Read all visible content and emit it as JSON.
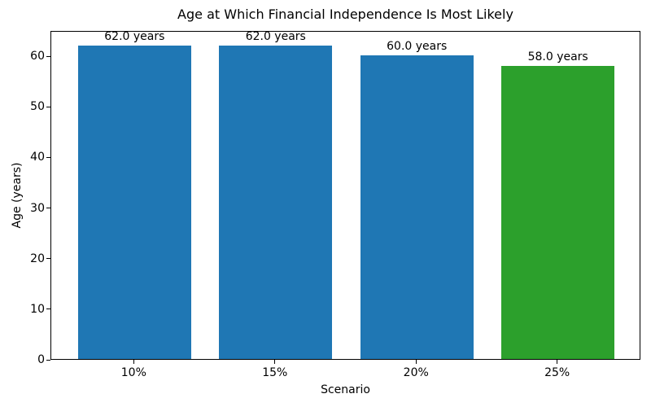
{
  "chart_data": {
    "type": "bar",
    "title": "Age at Which Financial Independence Is Most Likely",
    "xlabel": "Scenario",
    "ylabel": "Age (years)",
    "categories": [
      "10%",
      "15%",
      "20%",
      "25%"
    ],
    "values": [
      62.0,
      62.0,
      60.0,
      58.0
    ],
    "bar_labels": [
      "62.0 years",
      "62.0 years",
      "60.0 years",
      "58.0 years"
    ],
    "bar_colors": [
      "#1f77b4",
      "#1f77b4",
      "#1f77b4",
      "#2ca02c"
    ],
    "ylim": [
      0,
      65
    ],
    "yticks": [
      0,
      10,
      20,
      30,
      40,
      50,
      60
    ],
    "grid": false,
    "legend": null,
    "plot_border_color": "#000000",
    "background_color": "#ffffff"
  }
}
